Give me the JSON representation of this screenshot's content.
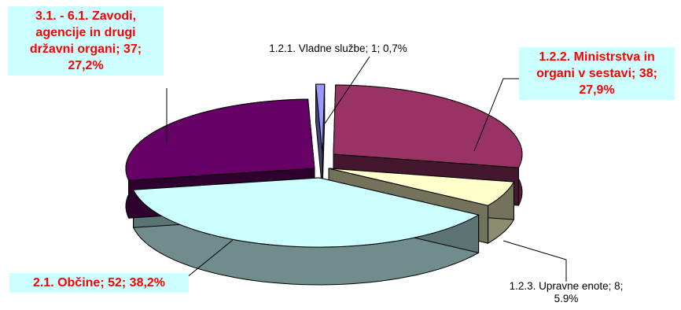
{
  "chart_data": {
    "type": "pie",
    "style": "3d-exploded",
    "slices": [
      {
        "label": "1.2.1. Vladne službe; 1; 0,7%",
        "name": "1.2.1. Vladne službe",
        "value": 1,
        "percent": 0.7,
        "color": "#9999ff",
        "highlight": false
      },
      {
        "label": "1.2.2. Ministrstva in organi v sestavi; 38; 27,9%",
        "name": "1.2.2. Ministrstva in organi v sestavi",
        "value": 38,
        "percent": 27.9,
        "color": "#993366",
        "highlight": true
      },
      {
        "label": "1.2.3. Upravne enote; 8; 5.9%",
        "name": "1.2.3. Upravne enote",
        "value": 8,
        "percent": 5.9,
        "color": "#ffffcc",
        "highlight": false
      },
      {
        "label": "2.1. Občine; 52; 38,2%",
        "name": "2.1. Občine",
        "value": 52,
        "percent": 38.2,
        "color": "#ccffff",
        "highlight": true
      },
      {
        "label": "3.1. - 6.1. Zavodi, agencije in drugi državni organi; 37; 27,2%",
        "name": "3.1. - 6.1. Zavodi, agencije in drugi državni organi",
        "value": 37,
        "percent": 27.2,
        "color": "#660066",
        "highlight": true
      }
    ],
    "label_lines": {
      "vladne": "1.2.1. Vladne službe; 1; 0,7%",
      "ministrstva": "1.2.2. Ministrstva in\norgani v sestavi; 38;\n27,9%",
      "upravne": "1.2.3. Upravne enote; 8;\n5.9%",
      "obcine": "2.1. Občine; 52; 38,2%",
      "zavodi": "3.1. - 6.1. Zavodi,\nagencije in drugi\ndržavni organi; 37;\n27,2%"
    },
    "legend": "none"
  }
}
